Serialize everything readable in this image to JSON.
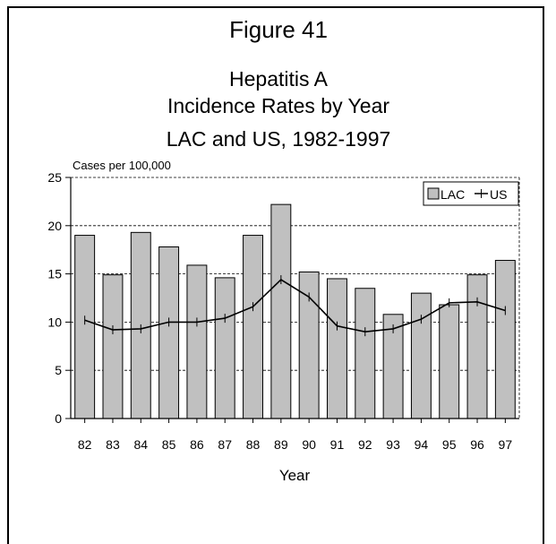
{
  "figure_label": "Figure 41",
  "chart_data": {
    "type": "bar",
    "title_lines": [
      "Hepatitis A",
      "Incidence Rates by Year",
      "LAC and US, 1982-1997"
    ],
    "xlabel": "Year",
    "ylabel": "Cases per 100,000",
    "categories": [
      "82",
      "83",
      "84",
      "85",
      "86",
      "87",
      "88",
      "89",
      "90",
      "91",
      "92",
      "93",
      "94",
      "95",
      "96",
      "97"
    ],
    "ylim": [
      0,
      25
    ],
    "yticks": [
      "0",
      "5",
      "10",
      "15",
      "20",
      "25"
    ],
    "grid": true,
    "legend_position": "top-right",
    "series": [
      {
        "name": "LAC",
        "kind": "bar",
        "color": "#c0c0c0",
        "values": [
          19.0,
          14.9,
          19.3,
          17.8,
          15.9,
          14.6,
          19.0,
          22.2,
          15.2,
          14.5,
          13.5,
          10.8,
          13.0,
          11.8,
          14.9,
          16.4
        ]
      },
      {
        "name": "US",
        "kind": "line",
        "color": "#000000",
        "values": [
          10.2,
          9.2,
          9.3,
          10.0,
          10.0,
          10.4,
          11.6,
          14.4,
          12.6,
          9.6,
          9.0,
          9.3,
          10.3,
          12.0,
          12.1,
          11.2
        ]
      }
    ]
  }
}
